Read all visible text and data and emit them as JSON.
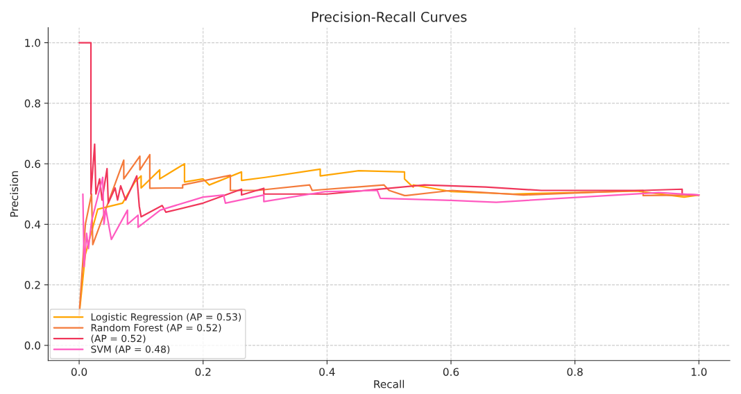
{
  "chart_data": {
    "type": "line",
    "title": "Precision-Recall Curves",
    "xlabel": "Recall",
    "ylabel": "Precision",
    "xlim": [
      -0.05,
      1.05
    ],
    "ylim": [
      -0.05,
      1.05
    ],
    "xticks": [
      {
        "value": 0,
        "label": "0.0"
      },
      {
        "value": 0.2,
        "label": "0.2"
      },
      {
        "value": 0.4,
        "label": "0.4"
      },
      {
        "value": 0.6,
        "label": "0.6"
      },
      {
        "value": 0.8,
        "label": "0.8"
      },
      {
        "value": 1,
        "label": "1.0"
      }
    ],
    "yticks": [
      {
        "value": 0,
        "label": "0.0"
      },
      {
        "value": 0.2,
        "label": "0.2"
      },
      {
        "value": 0.4,
        "label": "0.4"
      },
      {
        "value": 0.6,
        "label": "0.6"
      },
      {
        "value": 0.8,
        "label": "0.8"
      },
      {
        "value": 1,
        "label": "1.0"
      }
    ],
    "grid": true,
    "legend": "bottom left",
    "line_style": "solid",
    "series": [
      {
        "name": "Logistic Regression (AP = 0.53)",
        "color": "#ffa500",
        "x": [
          0,
          0.01,
          0.03,
          0.07,
          0.09,
          0.1,
          0.1,
          0.13,
          0.13,
          0.17,
          0.17,
          0.2,
          0.21,
          0.262,
          0.262,
          0.3,
          0.389,
          0.389,
          0.451,
          0.525,
          0.525,
          0.533,
          0.539,
          0.539,
          0.601,
          0.7,
          0.8,
          0.9,
          0.976,
          1.0
        ],
        "values": [
          0.1,
          0.3,
          0.45,
          0.47,
          0.54,
          0.56,
          0.52,
          0.58,
          0.55,
          0.6,
          0.54,
          0.55,
          0.53,
          0.573,
          0.545,
          0.555,
          0.582,
          0.56,
          0.577,
          0.573,
          0.55,
          0.534,
          0.523,
          0.53,
          0.508,
          0.5,
          0.505,
          0.51,
          0.49,
          0.497
        ]
      },
      {
        "name": "Random Forest (AP = 0.52)",
        "color": "#f47a3a",
        "x": [
          0,
          0.01,
          0.02,
          0.022,
          0.072,
          0.072,
          0.098,
          0.098,
          0.114,
          0.114,
          0.14,
          0.167,
          0.167,
          0.244,
          0.244,
          0.287,
          0.372,
          0.376,
          0.492,
          0.5,
          0.525,
          0.528,
          0.601,
          0.717,
          0.91,
          0.91,
          1.0
        ],
        "values": [
          0.1,
          0.4,
          0.5,
          0.333,
          0.612,
          0.55,
          0.625,
          0.58,
          0.63,
          0.519,
          0.52,
          0.52,
          0.53,
          0.562,
          0.512,
          0.512,
          0.53,
          0.512,
          0.53,
          0.512,
          0.495,
          0.495,
          0.512,
          0.497,
          0.512,
          0.495,
          0.497
        ]
      },
      {
        "name": "(AP = 0.52)",
        "color": "#f0365a",
        "x": [
          0,
          0.019,
          0.019,
          0.025,
          0.027,
          0.033,
          0.037,
          0.045,
          0.047,
          0.058,
          0.062,
          0.067,
          0.075,
          0.093,
          0.097,
          0.1,
          0.134,
          0.14,
          0.2,
          0.262,
          0.262,
          0.298,
          0.298,
          0.4,
          0.557,
          0.656,
          0.746,
          0.91,
          0.973,
          0.973,
          1.0
        ],
        "values": [
          1.0,
          1.0,
          0.5,
          0.665,
          0.5,
          0.55,
          0.48,
          0.584,
          0.47,
          0.52,
          0.48,
          0.527,
          0.48,
          0.56,
          0.46,
          0.425,
          0.462,
          0.44,
          0.47,
          0.516,
          0.497,
          0.519,
          0.5,
          0.5,
          0.53,
          0.523,
          0.512,
          0.512,
          0.516,
          0.5,
          0.497
        ]
      },
      {
        "name": "SVM (AP = 0.48)",
        "color": "#ff5ac0",
        "x": [
          0.006,
          0.008,
          0.012,
          0.015,
          0.02,
          0.038,
          0.04,
          0.043,
          0.052,
          0.078,
          0.078,
          0.095,
          0.095,
          0.131,
          0.2,
          0.233,
          0.236,
          0.298,
          0.298,
          0.397,
          0.481,
          0.486,
          0.6,
          0.673,
          0.935,
          1.0
        ],
        "values": [
          0.5,
          0.26,
          0.37,
          0.32,
          0.41,
          0.555,
          0.4,
          0.45,
          0.35,
          0.447,
          0.4,
          0.43,
          0.39,
          0.447,
          0.49,
          0.497,
          0.47,
          0.497,
          0.475,
          0.508,
          0.512,
          0.486,
          0.479,
          0.473,
          0.505,
          0.497
        ]
      }
    ]
  }
}
